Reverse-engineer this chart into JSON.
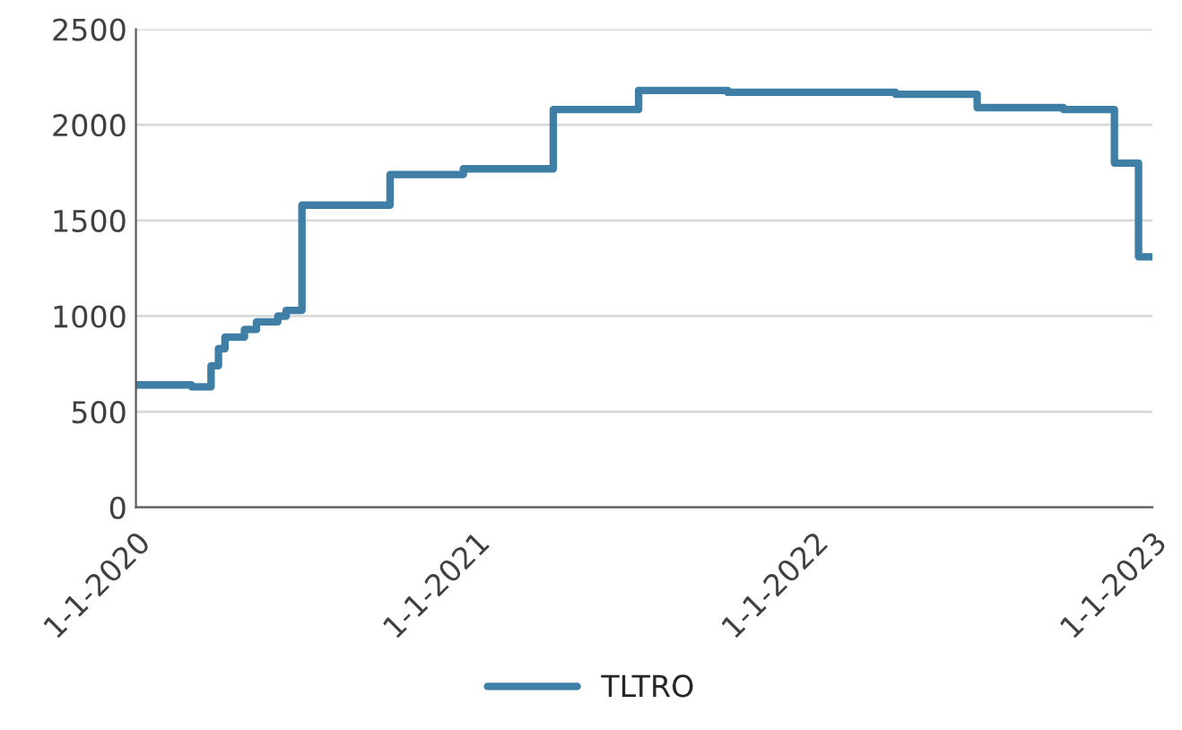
{
  "chart_data": {
    "type": "step",
    "x": [
      "2020-01-01",
      "2020-03-01",
      "2020-03-22",
      "2020-03-30",
      "2020-04-06",
      "2020-04-27",
      "2020-05-10",
      "2020-06-02",
      "2020-06-11",
      "2020-06-28",
      "2020-10-01",
      "2020-12-19",
      "2021-03-26",
      "2021-06-26",
      "2021-09-30",
      "2022-03-30",
      "2022-06-26",
      "2022-09-27",
      "2022-11-21",
      "2022-12-17",
      "2023-01-01"
    ],
    "series": [
      {
        "name": "TLTRO",
        "color": "#3f7fa6",
        "values": [
          640,
          630,
          740,
          830,
          890,
          930,
          970,
          1000,
          1030,
          1580,
          1740,
          1770,
          2080,
          2180,
          2170,
          2160,
          2090,
          2080,
          1800,
          1310,
          1310
        ]
      }
    ],
    "xlim": [
      "2020-01-01",
      "2023-01-01"
    ],
    "xticks": [
      {
        "value": "2020-01-01",
        "label": "1-1-2020"
      },
      {
        "value": "2021-01-01",
        "label": "1-1-2021"
      },
      {
        "value": "2022-01-01",
        "label": "1-1-2022"
      },
      {
        "value": "2023-01-01",
        "label": "1-1-2023"
      }
    ],
    "ylim": [
      0,
      2500
    ],
    "yticks": [
      0,
      500,
      1000,
      1500,
      2000,
      2500
    ],
    "grid": "y",
    "legend": "bottom",
    "line_style": "solid",
    "marker": "none"
  }
}
